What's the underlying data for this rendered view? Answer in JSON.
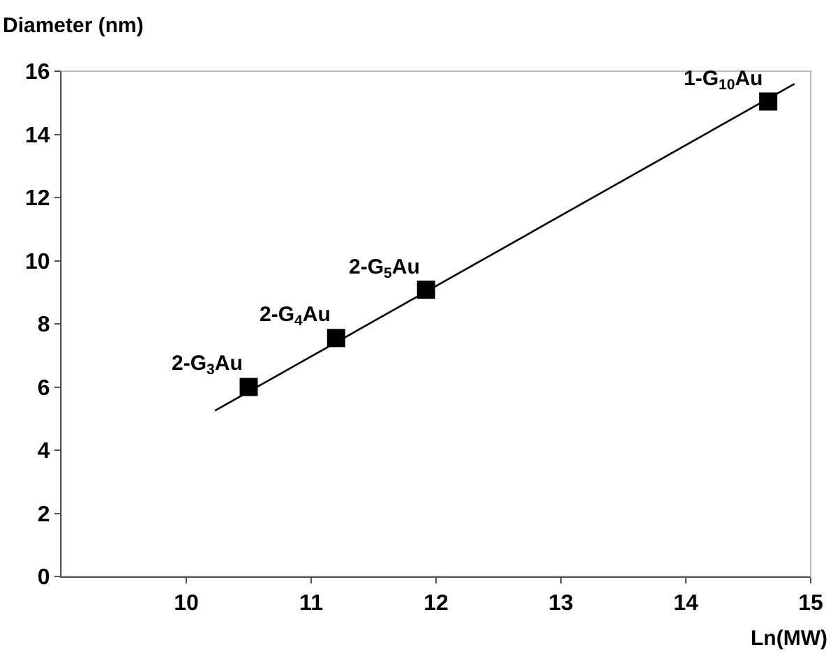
{
  "chart_data": {
    "type": "scatter",
    "ylabel": "Diameter (nm)",
    "xlabel": "Ln(MW)",
    "x": [
      10.5,
      11.2,
      11.92,
      14.66
    ],
    "series": [
      {
        "color": "#000000",
        "marker": "square",
        "values": [
          6.0,
          7.55,
          9.08,
          15.04
        ]
      },
      {
        "type": "line",
        "color": "#000000",
        "marker": "none",
        "line_style": "solid",
        "x": [
          10.23,
          14.87
        ],
        "values": [
          5.25,
          15.6
        ]
      }
    ],
    "annotations": [
      {
        "text": "2-G$_{3}$Au",
        "x": 10.5,
        "y": 6.0
      },
      {
        "text": "2-G$_{4}$Au",
        "x": 11.2,
        "y": 7.55
      },
      {
        "text": "2-G$_{5}$Au",
        "x": 11.92,
        "y": 9.08
      },
      {
        "text": "1-G$_{10}$Au",
        "x": 14.66,
        "y": 15.04
      }
    ],
    "xlim": [
      9,
      15
    ],
    "xticks": [
      10,
      11,
      12,
      13,
      14,
      15
    ],
    "ylim": [
      0,
      16
    ],
    "yticks": [
      0,
      2,
      4,
      6,
      8,
      10,
      12,
      14,
      16
    ],
    "grid": false,
    "legend": false
  }
}
